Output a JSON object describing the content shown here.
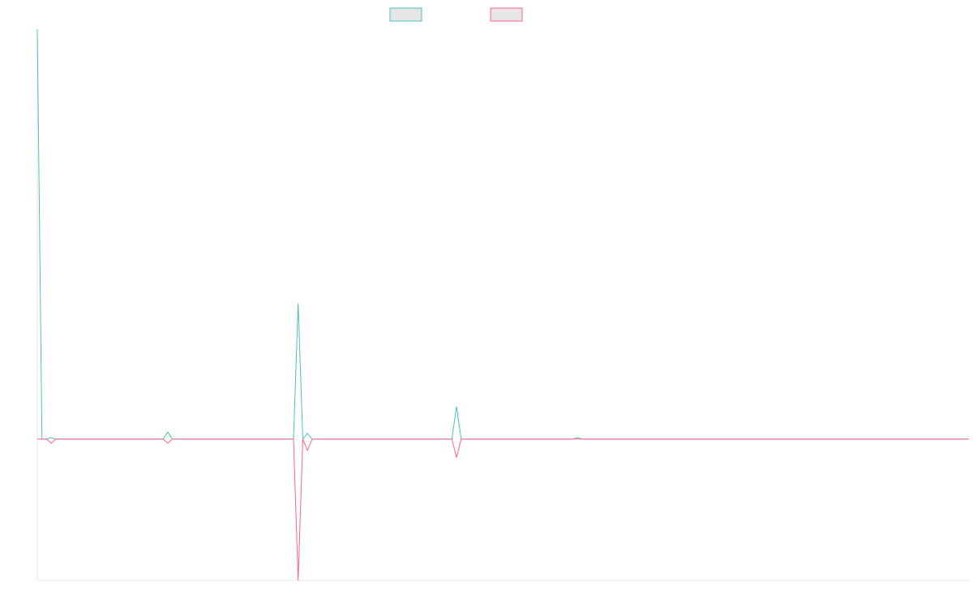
{
  "chart_data": {
    "type": "line",
    "title": "",
    "xlabel": "",
    "ylabel": "",
    "grid": false,
    "legend_position": "top-center",
    "x": [
      0,
      1,
      2,
      3,
      4,
      5,
      6,
      7,
      8,
      9,
      10,
      11,
      12,
      13,
      14,
      15,
      16,
      17,
      18,
      19,
      20,
      21,
      22,
      23,
      24,
      25,
      26,
      27,
      28,
      29,
      30,
      31,
      32,
      33,
      34,
      35,
      36,
      37,
      38,
      39,
      40,
      41,
      42,
      43,
      44,
      45,
      46,
      47,
      48,
      49,
      50,
      51,
      52,
      53,
      54,
      55,
      56,
      57,
      58,
      59,
      60,
      61,
      62,
      63,
      64,
      65,
      66,
      67,
      68,
      69,
      70,
      71,
      72,
      73,
      74,
      75,
      76,
      77,
      78,
      79,
      80,
      81,
      82,
      83,
      84,
      85,
      86,
      87,
      88,
      89,
      90,
      91,
      92,
      93,
      94,
      95,
      96,
      97,
      98,
      99,
      100,
      101,
      102,
      103,
      104,
      105,
      106,
      107,
      108,
      109,
      110,
      111,
      112,
      113,
      114,
      115,
      116,
      117,
      118,
      119,
      120,
      121,
      122,
      123,
      124,
      125,
      126,
      127,
      128,
      129,
      130,
      131,
      132,
      133,
      134,
      135,
      136,
      137,
      138,
      139,
      140,
      141,
      142,
      143,
      144,
      145,
      146,
      147,
      148,
      149,
      150,
      151,
      152,
      153,
      154,
      155,
      156,
      157,
      158,
      159,
      160,
      161,
      162,
      163,
      164,
      165,
      166,
      167,
      168,
      169,
      170,
      171,
      172,
      173,
      174,
      175,
      176,
      177,
      178,
      179,
      180,
      181,
      182,
      183,
      184,
      185,
      186,
      187,
      188,
      189,
      190,
      191,
      192,
      193,
      194,
      195,
      196,
      197,
      198,
      199,
      200
    ],
    "ylim": [
      -100,
      290
    ],
    "series": [
      {
        "name": "",
        "color": "#4bc0c0",
        "fill": "#e6e6e6",
        "values": [
          290,
          0,
          0,
          1,
          0,
          0,
          0,
          0,
          0,
          0,
          0,
          0,
          0,
          0,
          0,
          0,
          0,
          0,
          0,
          0,
          0,
          0,
          0,
          0,
          0,
          0,
          0,
          0,
          5,
          0,
          0,
          0,
          0,
          0,
          0,
          0,
          0,
          0,
          0,
          0,
          0,
          0,
          0,
          0,
          0,
          0,
          0,
          0,
          0,
          0,
          0,
          0,
          0,
          0,
          0,
          0,
          96,
          0,
          4,
          0,
          0,
          0,
          0,
          0,
          0,
          0,
          0,
          0,
          0,
          0,
          0,
          0,
          0,
          0,
          0,
          0,
          0,
          0,
          0,
          0,
          0,
          0,
          0,
          0,
          0,
          0,
          0,
          0,
          0,
          0,
          23,
          0,
          0,
          0,
          0,
          0,
          0,
          0,
          0,
          0,
          0,
          0,
          0,
          0,
          0,
          0,
          0,
          0,
          0,
          0,
          0,
          0,
          0,
          0,
          0,
          0,
          1,
          0,
          0,
          0,
          0,
          0,
          0,
          0,
          0,
          0,
          0,
          0,
          0,
          0,
          0,
          0,
          0,
          0,
          0,
          0,
          0,
          0,
          0,
          0,
          0,
          0,
          0,
          0,
          0,
          0,
          0,
          0,
          0,
          0,
          0,
          0,
          0,
          0,
          0,
          0,
          0,
          0,
          0,
          0,
          0,
          0,
          0,
          0,
          0,
          0,
          0,
          0,
          0,
          0,
          0,
          0,
          0,
          0,
          0,
          0,
          0,
          0,
          0,
          0,
          0,
          0,
          0,
          0,
          0,
          0,
          0,
          0,
          0,
          0,
          0,
          0,
          0,
          0,
          0,
          0,
          0,
          0,
          0,
          0,
          0
        ]
      },
      {
        "name": "",
        "color": "#ff6384",
        "fill": "#e6e6e6",
        "values": [
          0,
          0,
          0,
          -3,
          0,
          0,
          0,
          0,
          0,
          0,
          0,
          0,
          0,
          0,
          0,
          0,
          0,
          0,
          0,
          0,
          0,
          0,
          0,
          0,
          0,
          0,
          0,
          0,
          -3,
          0,
          0,
          0,
          0,
          0,
          0,
          0,
          0,
          0,
          0,
          0,
          0,
          0,
          0,
          0,
          0,
          0,
          0,
          0,
          0,
          0,
          0,
          0,
          0,
          0,
          0,
          0,
          -100,
          0,
          -8,
          0,
          0,
          0,
          0,
          0,
          0,
          0,
          0,
          0,
          0,
          0,
          0,
          0,
          0,
          0,
          0,
          0,
          0,
          0,
          0,
          0,
          0,
          0,
          0,
          0,
          0,
          0,
          0,
          0,
          0,
          0,
          -13,
          0,
          0,
          0,
          0,
          0,
          0,
          0,
          0,
          0,
          0,
          0,
          0,
          0,
          0,
          0,
          0,
          0,
          0,
          0,
          0,
          0,
          0,
          0,
          0,
          0,
          0,
          0,
          0,
          0,
          0,
          0,
          0,
          0,
          0,
          0,
          0,
          0,
          0,
          0,
          0,
          0,
          0,
          0,
          0,
          0,
          0,
          0,
          0,
          0,
          0,
          0,
          0,
          0,
          0,
          0,
          0,
          0,
          0,
          0,
          0,
          0,
          0,
          0,
          0,
          0,
          0,
          0,
          0,
          0,
          0,
          0,
          0,
          0,
          0,
          0,
          0,
          0,
          0,
          0,
          0,
          0,
          0,
          0,
          0,
          0,
          0,
          0,
          0,
          0,
          0,
          0,
          0,
          0,
          0,
          0,
          0,
          0,
          0,
          0,
          0,
          0,
          0,
          0,
          0,
          0,
          0,
          0,
          0,
          0,
          0
        ]
      }
    ]
  }
}
